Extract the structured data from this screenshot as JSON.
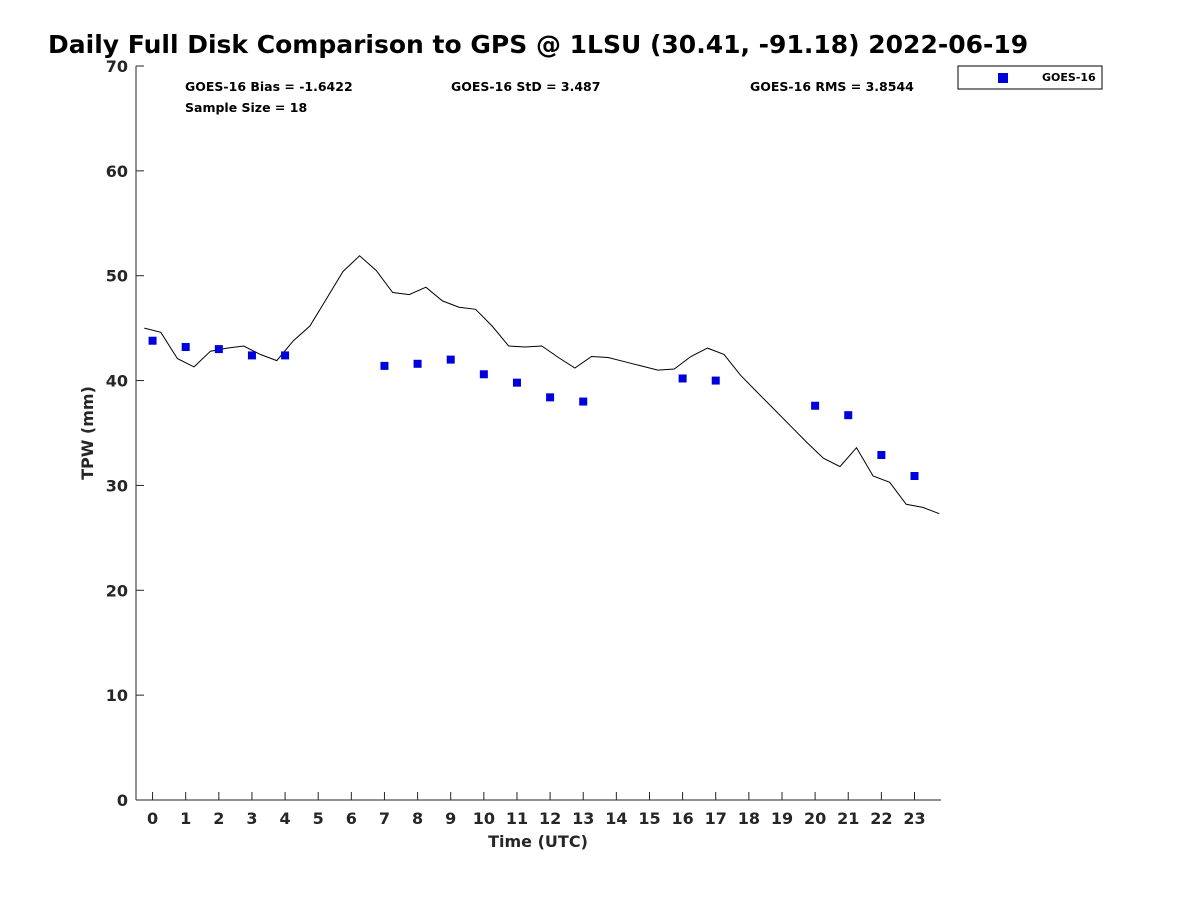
{
  "chart_data": {
    "type": "scatter",
    "title": "Daily Full Disk Comparison to GPS @ 1LSU (30.41, -91.18) 2022-06-19",
    "xlabel": "Time (UTC)",
    "ylabel": "TPW (mm)",
    "xlim": [
      -0.5,
      23.8
    ],
    "ylim": [
      0,
      70
    ],
    "x_ticks": [
      0,
      1,
      2,
      3,
      4,
      5,
      6,
      7,
      8,
      9,
      10,
      11,
      12,
      13,
      14,
      15,
      16,
      17,
      18,
      19,
      20,
      21,
      22,
      23
    ],
    "y_ticks": [
      0,
      10,
      20,
      30,
      40,
      50,
      60,
      70
    ],
    "stats": {
      "bias": "GOES-16 Bias = -1.6422",
      "std": "GOES-16 StD = 3.487",
      "rms": "GOES-16 RMS = 3.8544",
      "sample": "Sample Size = 18"
    },
    "legend": {
      "placement": "top-right",
      "entries": [
        "GOES-16"
      ]
    },
    "series": [
      {
        "name": "GOES-16",
        "style": "square-marker",
        "color": "#0000dd",
        "x": [
          0,
          1,
          2,
          3,
          4,
          7,
          8,
          9,
          10,
          11,
          12,
          13,
          16,
          17,
          20,
          21,
          22,
          23
        ],
        "y": [
          43.8,
          43.2,
          43.0,
          42.4,
          42.4,
          41.4,
          41.6,
          42.0,
          40.6,
          39.8,
          38.4,
          38.0,
          40.2,
          40.0,
          37.6,
          36.7,
          32.9,
          30.9
        ]
      },
      {
        "style": "line",
        "color": "#000000",
        "x": [
          -0.25,
          0.25,
          0.75,
          1.25,
          1.75,
          2.25,
          2.75,
          3.25,
          3.75,
          4.25,
          4.75,
          5.25,
          5.75,
          6.25,
          6.75,
          7.25,
          7.75,
          8.25,
          8.75,
          9.25,
          9.75,
          10.25,
          10.75,
          11.25,
          11.75,
          12.25,
          12.75,
          13.25,
          13.75,
          14.25,
          14.75,
          15.25,
          15.75,
          16.25,
          16.75,
          17.25,
          17.75,
          18.25,
          18.75,
          19.25,
          19.75,
          20.25,
          20.75,
          21.25,
          21.75,
          22.25,
          22.75,
          23.25,
          23.75
        ],
        "y": [
          45.0,
          44.6,
          42.1,
          41.3,
          42.8,
          43.1,
          43.3,
          42.5,
          41.9,
          43.8,
          45.2,
          47.8,
          50.4,
          51.9,
          50.5,
          48.4,
          48.2,
          48.9,
          47.6,
          47.0,
          46.8,
          45.2,
          43.3,
          43.2,
          43.3,
          42.2,
          41.2,
          42.3,
          42.2,
          41.8,
          41.4,
          41.0,
          41.1,
          42.3,
          43.1,
          42.5,
          40.5,
          38.9,
          37.3,
          35.7,
          34.1,
          32.6,
          31.8,
          33.6,
          30.9,
          30.3,
          28.2,
          27.9,
          27.3
        ]
      }
    ]
  }
}
